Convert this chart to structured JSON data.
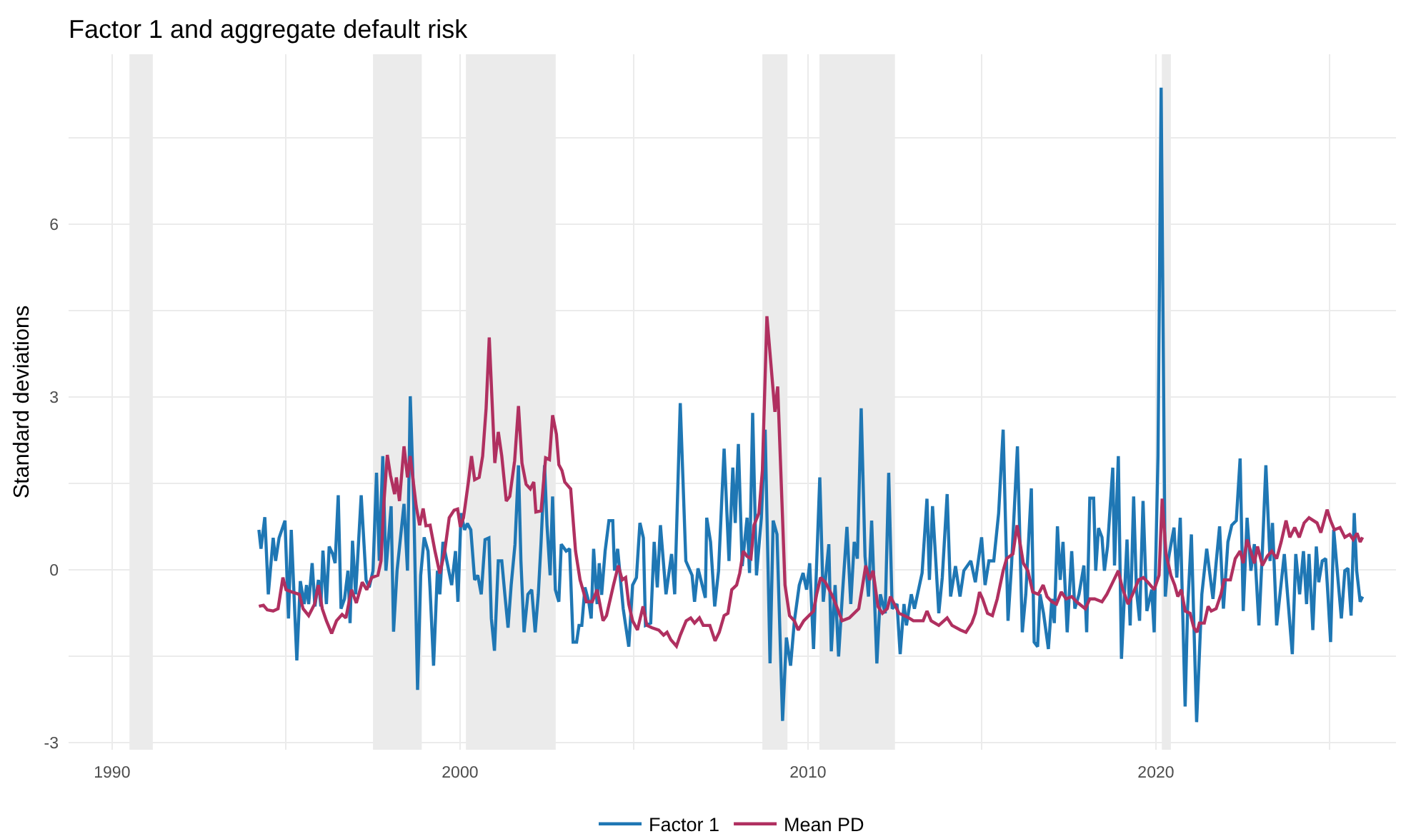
{
  "chart_data": {
    "type": "line",
    "title": "Factor 1 and aggregate default risk",
    "ylabel": "Standard deviations",
    "xlim": [
      1988.75,
      2026.9
    ],
    "xticks": [
      1990,
      {
        "value": 1995,
        "label": null
      },
      2000,
      {
        "value": 2005,
        "label": null
      },
      2010,
      {
        "value": 2015,
        "label": null
      },
      2020,
      {
        "value": 2025,
        "label": null
      }
    ],
    "ylim": [
      -3.13,
      8.95
    ],
    "yticks": [
      -3,
      {
        "value": -1.5,
        "label": null
      },
      0,
      {
        "value": 1.5,
        "label": null
      },
      3,
      {
        "value": 4.5,
        "label": null
      },
      6,
      {
        "value": 7.5,
        "label": null
      }
    ],
    "grid": true,
    "legend": "bottom",
    "bands": [
      {
        "axis": "x",
        "from": 1990.5,
        "to": 1991.17,
        "color": "#ebebeb"
      },
      {
        "axis": "x",
        "from": 1997.5,
        "to": 1998.9,
        "color": "#ebebeb"
      },
      {
        "axis": "x",
        "from": 2000.17,
        "to": 2002.75,
        "color": "#ebebeb"
      },
      {
        "axis": "x",
        "from": 2008.69,
        "to": 2009.41,
        "color": "#ebebeb"
      },
      {
        "axis": "x",
        "from": 2010.33,
        "to": 2012.5,
        "color": "#ebebeb"
      },
      {
        "axis": "x",
        "from": 2020.17,
        "to": 2020.43,
        "color": "#ebebeb"
      }
    ],
    "series": [
      {
        "name": "Factor 1",
        "color": "#1f77b4",
        "x": [
          1994.22,
          1994.28,
          1994.39,
          1994.49,
          1994.63,
          1994.7,
          1994.8,
          1994.97,
          1995.07,
          1995.15,
          1995.31,
          1995.41,
          1995.52,
          1995.59,
          1995.65,
          1995.75,
          1995.83,
          1995.93,
          1996.0,
          1996.06,
          1996.16,
          1996.24,
          1996.34,
          1996.41,
          1996.5,
          1996.58,
          1996.68,
          1996.78,
          1996.84,
          1996.91,
          1997.0,
          1997.16,
          1997.3,
          1997.39,
          1997.5,
          1997.6,
          1997.68,
          1997.78,
          1997.87,
          1998.02,
          1998.09,
          1998.19,
          1998.39,
          1998.49,
          1998.57,
          1998.67,
          1998.78,
          1998.87,
          1998.97,
          1999.08,
          1999.14,
          1999.24,
          1999.35,
          1999.42,
          1999.51,
          1999.62,
          1999.76,
          1999.87,
          1999.94,
          2000.03,
          2000.13,
          2000.21,
          2000.31,
          2000.42,
          2000.51,
          2000.61,
          2000.72,
          2000.83,
          2000.9,
          2000.99,
          2001.1,
          2001.2,
          2001.29,
          2001.38,
          2001.47,
          2001.58,
          2001.68,
          2001.75,
          2001.84,
          2001.95,
          2002.06,
          2002.16,
          2002.25,
          2002.33,
          2002.43,
          2002.5,
          2002.59,
          2002.66,
          2002.74,
          2002.84,
          2002.91,
          2003.05,
          2003.15,
          2003.25,
          2003.35,
          2003.42,
          2003.5,
          2003.59,
          2003.7,
          2003.77,
          2003.84,
          2003.94,
          2004.0,
          2004.07,
          2004.17,
          2004.28,
          2004.39,
          2004.44,
          2004.53,
          2004.69,
          2004.85,
          2004.96,
          2005.07,
          2005.17,
          2005.27,
          2005.33,
          2005.48,
          2005.58,
          2005.67,
          2005.76,
          2005.92,
          2006.08,
          2006.17,
          2006.33,
          2006.49,
          2006.67,
          2006.74,
          2006.84,
          2007.05,
          2007.09,
          2007.2,
          2007.32,
          2007.43,
          2007.59,
          2007.73,
          2007.84,
          2007.91,
          2008.0,
          2008.11,
          2008.25,
          2008.32,
          2008.41,
          2008.52,
          2008.66,
          2008.77,
          2008.91,
          2009.0,
          2009.11,
          2009.27,
          2009.38,
          2009.5,
          2009.61,
          2009.75,
          2009.86,
          2009.96,
          2010.05,
          2010.16,
          2010.34,
          2010.44,
          2010.6,
          2010.67,
          2010.78,
          2010.88,
          2010.99,
          2011.12,
          2011.23,
          2011.33,
          2011.42,
          2011.53,
          2011.64,
          2011.74,
          2011.83,
          2011.98,
          2012.08,
          2012.22,
          2012.32,
          2012.42,
          2012.56,
          2012.65,
          2012.76,
          2012.83,
          2012.97,
          2013.06,
          2013.28,
          2013.42,
          2013.49,
          2013.58,
          2013.69,
          2013.76,
          2013.86,
          2014.0,
          2014.1,
          2014.24,
          2014.37,
          2014.48,
          2014.68,
          2014.81,
          2014.99,
          2015.09,
          2015.2,
          2015.34,
          2015.48,
          2015.61,
          2015.75,
          2015.85,
          2016.02,
          2016.16,
          2016.26,
          2016.42,
          2016.5,
          2016.6,
          2016.67,
          2016.77,
          2016.91,
          2017.01,
          2017.08,
          2017.17,
          2017.25,
          2017.33,
          2017.45,
          2017.58,
          2017.67,
          2017.79,
          2017.93,
          2018.01,
          2018.1,
          2018.21,
          2018.27,
          2018.35,
          2018.45,
          2018.52,
          2018.61,
          2018.76,
          2018.81,
          2018.92,
          2019.01,
          2019.17,
          2019.26,
          2019.36,
          2019.44,
          2019.53,
          2019.63,
          2019.74,
          2019.88,
          2019.95,
          2020.06,
          2020.15,
          2020.27,
          2020.36,
          2020.52,
          2020.6,
          2020.7,
          2020.84,
          2020.91,
          2021.02,
          2021.17,
          2021.32,
          2021.46,
          2021.64,
          2021.73,
          2021.83,
          2021.94,
          2022.07,
          2022.18,
          2022.31,
          2022.42,
          2022.51,
          2022.62,
          2022.73,
          2022.83,
          2022.96,
          2023.06,
          2023.16,
          2023.28,
          2023.35,
          2023.47,
          2023.58,
          2023.69,
          2023.92,
          2024.02,
          2024.13,
          2024.24,
          2024.33,
          2024.4,
          2024.51,
          2024.61,
          2024.68,
          2024.78,
          2024.88,
          2024.95,
          2025.02,
          2025.11,
          2025.33,
          2025.43,
          2025.52,
          2025.61,
          2025.7,
          2025.77,
          2025.87,
          2025.94
        ],
        "values": [
          0.69,
          0.36,
          0.91,
          -0.43,
          0.55,
          0.15,
          0.55,
          0.85,
          -0.85,
          0.69,
          -1.58,
          -0.2,
          -0.6,
          -0.27,
          -0.6,
          0.11,
          -0.64,
          -0.18,
          -0.64,
          0.33,
          -0.6,
          0.4,
          0.27,
          0.11,
          1.29,
          -0.68,
          -0.51,
          -0.02,
          -0.93,
          0.5,
          -0.43,
          1.29,
          -0.18,
          -0.31,
          -0.02,
          1.68,
          0.15,
          1.97,
          -0.02,
          1.1,
          -1.08,
          -0.02,
          1.14,
          -0.02,
          3.01,
          1.14,
          -2.09,
          -0.1,
          0.56,
          0.32,
          -0.35,
          -1.67,
          -0.02,
          -0.43,
          0.48,
          0.15,
          -0.27,
          0.32,
          -0.56,
          0.98,
          0.69,
          0.8,
          0.69,
          -0.18,
          -0.1,
          -0.43,
          0.52,
          0.55,
          -0.85,
          -1.41,
          0.15,
          0.15,
          -0.44,
          -1.01,
          -0.27,
          0.44,
          1.81,
          0.15,
          -1.09,
          -0.43,
          -0.35,
          -1.09,
          -0.43,
          0.48,
          1.81,
          0.77,
          -0.1,
          1.27,
          -0.35,
          -0.56,
          0.44,
          0.32,
          0.36,
          -1.26,
          -1.26,
          -0.97,
          -0.97,
          -0.31,
          -0.56,
          -0.85,
          0.36,
          -0.6,
          0.11,
          -0.44,
          0.32,
          0.85,
          0.85,
          -0.02,
          0.36,
          -0.68,
          -1.34,
          -0.27,
          -0.14,
          0.81,
          0.55,
          -0.97,
          -0.93,
          0.48,
          -0.31,
          0.77,
          -0.43,
          0.27,
          -0.43,
          2.89,
          0.15,
          -0.1,
          -0.56,
          0.02,
          -0.49,
          0.9,
          0.48,
          -0.64,
          -0.02,
          2.1,
          0.15,
          1.77,
          0.81,
          2.18,
          0.06,
          0.9,
          -0.06,
          2.72,
          -0.1,
          0.9,
          2.43,
          -1.63,
          0.85,
          0.61,
          -2.63,
          -1.18,
          -1.67,
          -0.89,
          -0.27,
          -0.06,
          -0.35,
          0.11,
          -1.38,
          1.6,
          -0.56,
          0.44,
          -1.42,
          -0.27,
          -1.51,
          -0.43,
          0.74,
          -0.6,
          0.48,
          0.19,
          2.8,
          0.23,
          -0.47,
          0.85,
          -1.63,
          -0.43,
          -0.76,
          1.68,
          -0.68,
          -0.6,
          -1.47,
          -0.6,
          -0.97,
          -0.43,
          -0.68,
          -0.06,
          1.23,
          -0.18,
          1.1,
          -0.02,
          -0.76,
          -0.14,
          1.31,
          -0.47,
          0.06,
          -0.47,
          -0.02,
          0.15,
          -0.22,
          0.56,
          -0.27,
          0.15,
          0.15,
          0.98,
          2.43,
          -0.89,
          0.07,
          2.14,
          -1.09,
          -0.43,
          1.41,
          -1.26,
          -1.34,
          -0.43,
          -0.76,
          -1.38,
          -0.51,
          -0.93,
          0.75,
          -0.18,
          0.48,
          -1.09,
          0.32,
          -0.68,
          -0.43,
          0.07,
          -1.09,
          1.24,
          1.24,
          -0.02,
          0.72,
          0.56,
          -0.02,
          0.4,
          1.77,
          0.07,
          1.97,
          -1.55,
          0.52,
          -0.97,
          1.27,
          -0.35,
          -0.89,
          1.19,
          -0.72,
          -0.35,
          -1.09,
          1.97,
          8.37,
          -0.47,
          0.19,
          0.73,
          -0.14,
          0.9,
          -2.38,
          -0.68,
          0.61,
          -2.65,
          -0.43,
          0.36,
          -0.51,
          0.11,
          0.75,
          -0.68,
          0.48,
          0.77,
          0.85,
          1.93,
          -0.72,
          0.9,
          -0.02,
          0.44,
          -0.97,
          0.32,
          1.81,
          0.15,
          0.81,
          -0.97,
          -0.35,
          0.27,
          -1.47,
          0.27,
          -0.43,
          0.32,
          -0.6,
          0.27,
          -1.05,
          0.4,
          -0.22,
          0.15,
          0.19,
          -0.51,
          -1.26,
          0.69,
          -0.85,
          -0.02,
          0.02,
          -0.8,
          0.98,
          -0.02,
          -0.56,
          -0.47
        ]
      },
      {
        "name": "Mean PD",
        "color": "#b03060",
        "x": [
          1994.22,
          1994.35,
          1994.46,
          1994.63,
          1994.77,
          1994.91,
          1995.0,
          1995.17,
          1995.38,
          1995.49,
          1995.65,
          1995.82,
          1995.93,
          1996.04,
          1996.16,
          1996.31,
          1996.45,
          1996.61,
          1996.72,
          1996.88,
          1997.02,
          1997.19,
          1997.32,
          1997.46,
          1997.64,
          1997.73,
          1997.81,
          1997.91,
          1998.0,
          1998.12,
          1998.17,
          1998.26,
          1998.39,
          1998.49,
          1998.57,
          1998.74,
          1998.84,
          1998.94,
          1999.02,
          1999.14,
          1999.28,
          1999.42,
          1999.56,
          1999.69,
          1999.83,
          1999.93,
          2000.01,
          2000.1,
          2000.24,
          2000.33,
          2000.42,
          2000.55,
          2000.65,
          2000.75,
          2000.84,
          2001.0,
          2001.1,
          2001.2,
          2001.33,
          2001.43,
          2001.57,
          2001.68,
          2001.78,
          2001.9,
          2002.02,
          2002.12,
          2002.18,
          2002.33,
          2002.46,
          2002.57,
          2002.66,
          2002.77,
          2002.84,
          2002.93,
          2003.01,
          2003.18,
          2003.32,
          2003.45,
          2003.63,
          2003.8,
          2003.94,
          2004.11,
          2004.21,
          2004.41,
          2004.55,
          2004.66,
          2004.76,
          2004.85,
          2004.96,
          2005.1,
          2005.26,
          2005.37,
          2005.51,
          2005.71,
          2005.85,
          2005.95,
          2006.06,
          2006.22,
          2006.33,
          2006.5,
          2006.63,
          2006.74,
          2006.88,
          2006.99,
          2007.18,
          2007.33,
          2007.45,
          2007.59,
          2007.7,
          2007.81,
          2007.95,
          2008.04,
          2008.14,
          2008.25,
          2008.36,
          2008.45,
          2008.59,
          2008.69,
          2008.82,
          2009.05,
          2009.13,
          2009.34,
          2009.47,
          2009.61,
          2009.72,
          2009.88,
          2010.16,
          2010.25,
          2010.36,
          2010.5,
          2010.71,
          2010.85,
          2010.98,
          2011.19,
          2011.46,
          2011.55,
          2011.66,
          2011.77,
          2011.87,
          2012.01,
          2012.14,
          2012.28,
          2012.37,
          2012.62,
          2012.9,
          2013.03,
          2013.31,
          2013.42,
          2013.54,
          2013.76,
          2014.0,
          2014.14,
          2014.38,
          2014.54,
          2014.71,
          2014.81,
          2014.93,
          2015.02,
          2015.16,
          2015.3,
          2015.44,
          2015.61,
          2015.71,
          2015.89,
          2016.01,
          2016.19,
          2016.32,
          2016.46,
          2016.62,
          2016.76,
          2016.87,
          2017.01,
          2017.14,
          2017.28,
          2017.42,
          2017.58,
          2017.72,
          2017.97,
          2018.1,
          2018.24,
          2018.45,
          2018.59,
          2018.72,
          2018.92,
          2019.03,
          2019.2,
          2019.36,
          2019.5,
          2019.64,
          2019.77,
          2019.95,
          2020.09,
          2020.18,
          2020.29,
          2020.43,
          2020.54,
          2020.63,
          2020.73,
          2020.84,
          2020.98,
          2021.09,
          2021.18,
          2021.25,
          2021.39,
          2021.5,
          2021.59,
          2021.73,
          2021.87,
          2021.96,
          2022.14,
          2022.28,
          2022.42,
          2022.51,
          2022.62,
          2022.83,
          2022.92,
          2023.06,
          2023.2,
          2023.33,
          2023.47,
          2023.6,
          2023.74,
          2023.85,
          2023.99,
          2024.12,
          2024.26,
          2024.4,
          2024.63,
          2024.74,
          2024.92,
          2025.02,
          2025.13,
          2025.29,
          2025.43,
          2025.57,
          2025.67,
          2025.78,
          2025.87,
          2025.94
        ],
        "values": [
          -0.64,
          -0.62,
          -0.7,
          -0.72,
          -0.68,
          -0.14,
          -0.35,
          -0.39,
          -0.43,
          -0.68,
          -0.8,
          -0.6,
          -0.27,
          -0.68,
          -0.89,
          -1.11,
          -0.89,
          -0.78,
          -0.84,
          -0.35,
          -0.58,
          -0.22,
          -0.35,
          -0.14,
          -0.1,
          0.15,
          1.14,
          1.99,
          1.64,
          1.31,
          1.6,
          1.19,
          2.14,
          1.6,
          1.97,
          1.1,
          0.77,
          1.06,
          0.76,
          0.77,
          0.32,
          -0.07,
          0.32,
          0.9,
          1.03,
          1.05,
          0.74,
          0.9,
          1.52,
          1.97,
          1.56,
          1.6,
          1.97,
          2.8,
          4.03,
          1.85,
          2.39,
          1.97,
          1.19,
          1.27,
          1.89,
          2.84,
          1.85,
          1.48,
          1.4,
          1.52,
          1.0,
          1.02,
          1.94,
          1.91,
          2.68,
          2.35,
          1.82,
          1.72,
          1.52,
          1.4,
          0.32,
          -0.18,
          -0.56,
          -0.56,
          -0.35,
          -0.89,
          -0.8,
          -0.27,
          0.07,
          -0.18,
          -0.14,
          -0.6,
          -0.89,
          -1.05,
          -0.64,
          -0.97,
          -1.01,
          -1.05,
          -1.14,
          -1.09,
          -1.22,
          -1.33,
          -1.14,
          -0.89,
          -0.84,
          -0.93,
          -0.84,
          -0.97,
          -0.97,
          -1.24,
          -1.09,
          -0.8,
          -0.76,
          -0.35,
          -0.27,
          -0.06,
          0.32,
          0.23,
          0.19,
          0.77,
          0.98,
          1.72,
          4.4,
          2.74,
          3.18,
          -0.27,
          -0.8,
          -0.89,
          -1.05,
          -0.89,
          -0.72,
          -0.43,
          -0.14,
          -0.22,
          -0.47,
          -0.68,
          -0.89,
          -0.84,
          -0.68,
          -0.35,
          0.07,
          -0.18,
          -0.02,
          -0.64,
          -0.76,
          -0.68,
          -0.47,
          -0.76,
          -0.84,
          -0.89,
          -0.89,
          -0.72,
          -0.89,
          -0.97,
          -0.84,
          -0.97,
          -1.05,
          -1.09,
          -0.93,
          -0.76,
          -0.39,
          -0.51,
          -0.76,
          -0.8,
          -0.51,
          -0.02,
          0.19,
          0.27,
          0.77,
          0.11,
          -0.02,
          -0.39,
          -0.43,
          -0.27,
          -0.47,
          -0.56,
          -0.6,
          -0.39,
          -0.51,
          -0.47,
          -0.56,
          -0.68,
          -0.51,
          -0.51,
          -0.56,
          -0.43,
          -0.27,
          -0.02,
          -0.31,
          -0.6,
          -0.39,
          -0.18,
          -0.14,
          -0.22,
          -0.35,
          -0.1,
          1.23,
          0.27,
          -0.1,
          -0.27,
          -0.47,
          -0.35,
          -0.72,
          -0.76,
          -1.01,
          -1.09,
          -0.93,
          -0.93,
          -0.64,
          -0.72,
          -0.68,
          -0.43,
          -0.18,
          -0.18,
          0.19,
          0.32,
          0.11,
          0.52,
          0.11,
          0.4,
          0.07,
          0.23,
          0.32,
          0.19,
          0.48,
          0.85,
          0.56,
          0.73,
          0.56,
          0.81,
          0.9,
          0.81,
          0.64,
          1.04,
          0.85,
          0.69,
          0.73,
          0.56,
          0.61,
          0.52,
          0.63,
          0.48,
          0.56
        ]
      }
    ]
  }
}
